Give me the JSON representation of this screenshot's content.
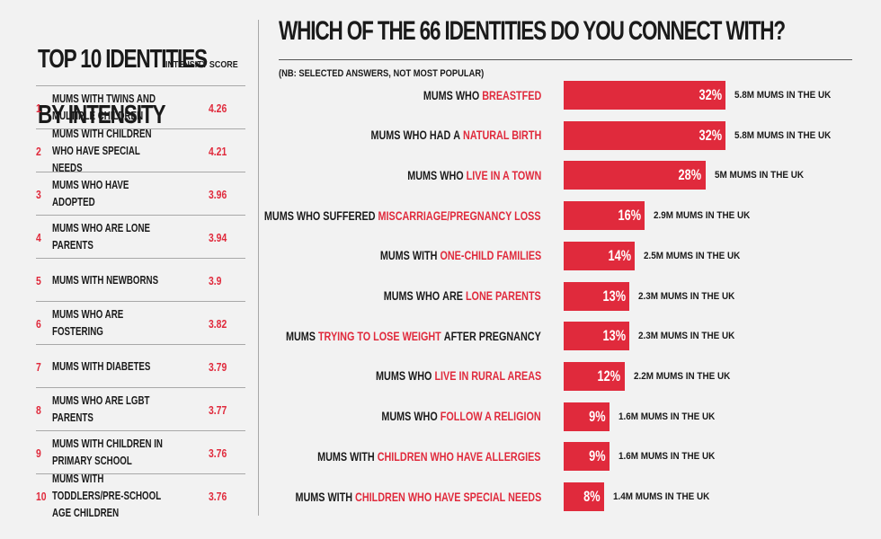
{
  "left": {
    "title_line1": "TOP 10 IDENTITIES",
    "title_line2": "BY INTENSITY",
    "score_header": "INTENSITY SCORE",
    "rows": [
      {
        "rank": "1",
        "label": "MUMS WITH TWINS AND MULTIPLE CHILDREN",
        "score": "4.26"
      },
      {
        "rank": "2",
        "label": "MUMS WITH CHILDREN WHO HAVE SPECIAL NEEDS",
        "score": "4.21"
      },
      {
        "rank": "3",
        "label": "MUMS WHO HAVE ADOPTED",
        "score": "3.96"
      },
      {
        "rank": "4",
        "label": "MUMS WHO ARE LONE PARENTS",
        "score": "3.94"
      },
      {
        "rank": "5",
        "label": "MUMS WITH NEWBORNS",
        "score": "3.9"
      },
      {
        "rank": "6",
        "label": "MUMS WHO ARE FOSTERING",
        "score": "3.82"
      },
      {
        "rank": "7",
        "label": "MUMS WITH DIABETES",
        "score": "3.79"
      },
      {
        "rank": "8",
        "label": "MUMS WHO ARE LGBT PARENTS",
        "score": "3.77"
      },
      {
        "rank": "9",
        "label": "MUMS WITH CHILDREN IN PRIMARY SCHOOL",
        "score": "3.76"
      },
      {
        "rank": "10",
        "label": "MUMS WITH TODDLERS/PRE-SCHOOL AGE CHILDREN",
        "score": "3.76"
      }
    ]
  },
  "chart_data": {
    "type": "bar",
    "orientation": "horizontal",
    "title": "WHICH OF THE 66 IDENTITIES DO YOU CONNECT WITH?",
    "note": "(NB: SELECTED ANSWERS, NOT MOST POPULAR)",
    "bar_color": "#e02a3c",
    "highlight_color": "#e02a3c",
    "xlim": [
      0,
      32
    ],
    "categories": [
      {
        "prefix": "MUMS WHO ",
        "highlight": "BREASTFED",
        "suffix": ""
      },
      {
        "prefix": "MUMS WHO HAD A ",
        "highlight": "NATURAL BIRTH",
        "suffix": ""
      },
      {
        "prefix": "MUMS WHO ",
        "highlight": "LIVE IN A TOWN",
        "suffix": ""
      },
      {
        "prefix": "MUMS WHO SUFFERED ",
        "highlight": "MISCARRIAGE/PREGNANCY LOSS",
        "suffix": ""
      },
      {
        "prefix": "MUMS WITH ",
        "highlight": "ONE-CHILD FAMILIES",
        "suffix": ""
      },
      {
        "prefix": "MUMS WHO ARE ",
        "highlight": "LONE PARENTS",
        "suffix": ""
      },
      {
        "prefix": "MUMS ",
        "highlight": "TRYING TO LOSE WEIGHT",
        "suffix": " AFTER PREGNANCY"
      },
      {
        "prefix": "MUMS WHO ",
        "highlight": "LIVE IN RURAL AREAS",
        "suffix": ""
      },
      {
        "prefix": "MUMS WHO ",
        "highlight": "FOLLOW A RELIGION",
        "suffix": ""
      },
      {
        "prefix": "MUMS WITH ",
        "highlight": "CHILDREN WHO HAVE ALLERGIES",
        "suffix": ""
      },
      {
        "prefix": "MUMS WITH ",
        "highlight": "CHILDREN WHO HAVE SPECIAL NEEDS",
        "suffix": ""
      }
    ],
    "values": [
      32,
      32,
      28,
      16,
      14,
      13,
      13,
      12,
      9,
      9,
      8
    ],
    "value_labels": [
      "32%",
      "32%",
      "28%",
      "16%",
      "14%",
      "13%",
      "13%",
      "12%",
      "9%",
      "9%",
      "8%"
    ],
    "uk_labels": [
      "5.8M MUMS IN THE UK",
      "5.8M MUMS IN THE UK",
      "5M MUMS IN THE UK",
      "2.9M MUMS IN THE UK",
      "2.5M MUMS IN THE UK",
      "2.3M MUMS IN THE UK",
      "2.3M MUMS IN THE UK",
      "2.2M MUMS IN THE UK",
      "1.6M MUMS IN THE UK",
      "1.6M MUMS IN THE UK",
      "1.4M MUMS IN THE UK"
    ]
  }
}
